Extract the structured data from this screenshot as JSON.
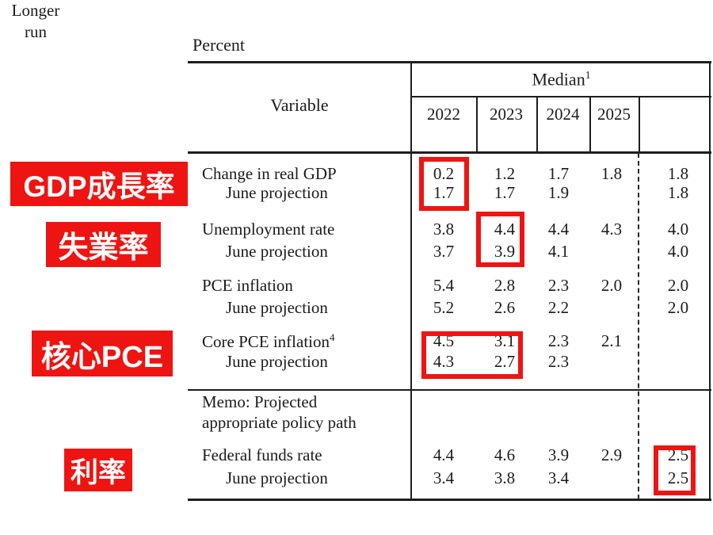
{
  "colors": {
    "accent_red": "#ee1412",
    "text": "#1b1b1b"
  },
  "table": {
    "unit_label": "Percent",
    "variable_header": "Variable",
    "median_header": {
      "text": "Median",
      "superscript": "1"
    },
    "year_headers": [
      "2022",
      "2023",
      "2024",
      "2025"
    ],
    "longer_run_header": {
      "line1": "Longer",
      "line2": "run"
    },
    "rows": [
      {
        "label": "Change in real GDP",
        "indent": false,
        "sup": "",
        "values": [
          "0.2",
          "1.2",
          "1.7",
          "1.8",
          "1.8"
        ]
      },
      {
        "label": "June projection",
        "indent": true,
        "sup": "",
        "values": [
          "1.7",
          "1.7",
          "1.9",
          "",
          "1.8"
        ]
      },
      {
        "label": "Unemployment rate",
        "indent": false,
        "sup": "",
        "values": [
          "3.8",
          "4.4",
          "4.4",
          "4.3",
          "4.0"
        ]
      },
      {
        "label": "June projection",
        "indent": true,
        "sup": "",
        "values": [
          "3.7",
          "3.9",
          "4.1",
          "",
          "4.0"
        ]
      },
      {
        "label": "PCE inflation",
        "indent": false,
        "sup": "",
        "values": [
          "5.4",
          "2.8",
          "2.3",
          "2.0",
          "2.0"
        ]
      },
      {
        "label": "June projection",
        "indent": true,
        "sup": "",
        "values": [
          "5.2",
          "2.6",
          "2.2",
          "",
          "2.0"
        ]
      },
      {
        "label": "Core PCE inflation",
        "indent": false,
        "sup": "4",
        "values": [
          "4.5",
          "3.1",
          "2.3",
          "2.1",
          ""
        ]
      },
      {
        "label": "June projection",
        "indent": true,
        "sup": "",
        "values": [
          "4.3",
          "2.7",
          "2.3",
          "",
          ""
        ]
      },
      {
        "label": "Federal funds rate",
        "indent": false,
        "sup": "",
        "values": [
          "4.4",
          "4.6",
          "3.9",
          "2.9",
          "2.5"
        ]
      },
      {
        "label": "June projection",
        "indent": true,
        "sup": "",
        "values": [
          "3.4",
          "3.8",
          "3.4",
          "",
          "2.5"
        ]
      }
    ],
    "memo": {
      "line1": "Memo: Projected",
      "line2": "appropriate policy path"
    }
  },
  "annotations": {
    "labels": [
      {
        "text": "GDP成長率"
      },
      {
        "text": "失業率"
      },
      {
        "text": "核心PCE"
      },
      {
        "text": "利率"
      }
    ]
  }
}
